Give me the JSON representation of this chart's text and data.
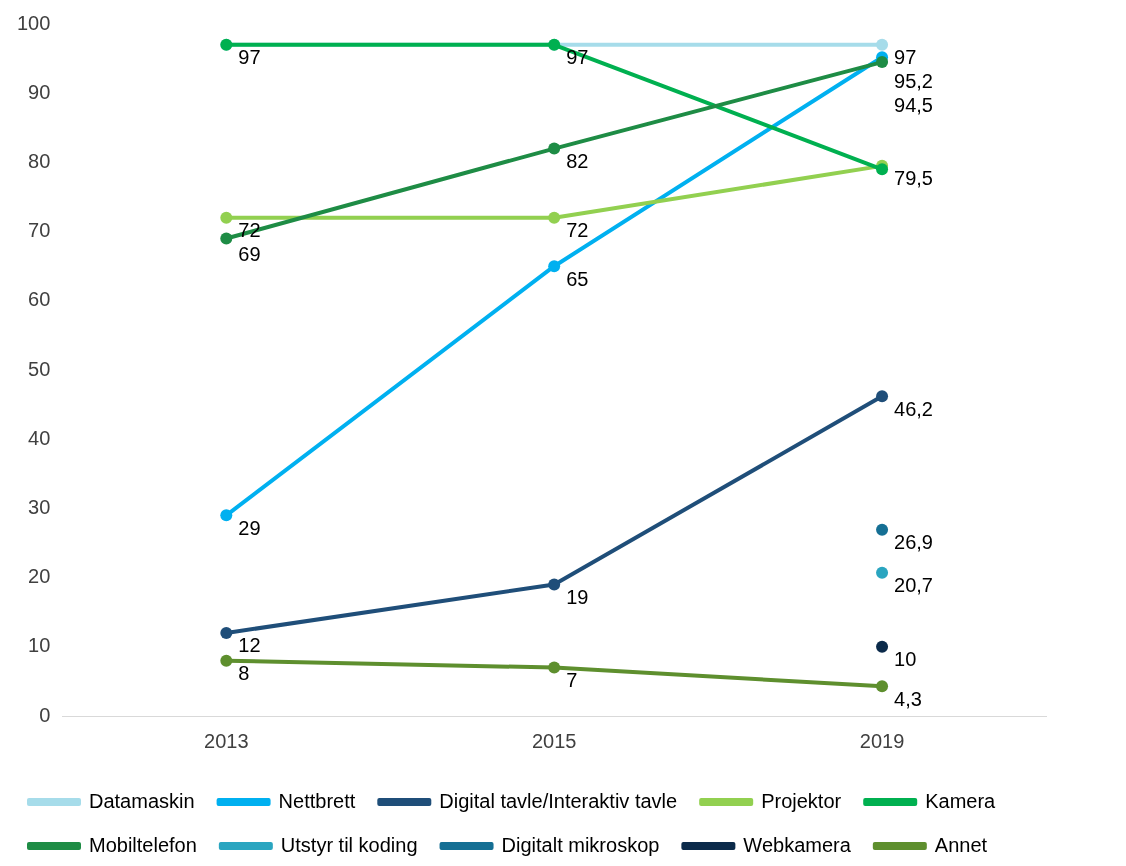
{
  "chart_data": {
    "type": "line",
    "categories": [
      "2013",
      "2015",
      "2019"
    ],
    "ylim": [
      0,
      100
    ],
    "yticks": [
      0,
      10,
      20,
      30,
      40,
      50,
      60,
      70,
      80,
      90,
      100
    ],
    "grid": false,
    "legend": "bottom",
    "marker": "circle",
    "line_style": "solid",
    "series": [
      {
        "name": "Datamaskin",
        "color": "#a6dcea",
        "values": [
          97,
          97,
          97
        ],
        "value_labels": [
          null,
          null,
          "97"
        ]
      },
      {
        "name": "Nettbrett",
        "color": "#00b0f0",
        "values": [
          29,
          65,
          95.2
        ],
        "value_labels": [
          "29",
          "65",
          "95,2"
        ]
      },
      {
        "name": "Digital tavle/Interaktiv tavle",
        "color": "#1f4e79",
        "values": [
          12,
          19,
          46.2
        ],
        "value_labels": [
          "12",
          "19",
          "46,2"
        ]
      },
      {
        "name": "Projektor",
        "color": "#92d050",
        "values": [
          72,
          72,
          79.5
        ],
        "value_labels": [
          "72",
          "72",
          "79,5"
        ]
      },
      {
        "name": "Kamera",
        "color": "#00b050",
        "values": [
          97,
          97,
          79
        ],
        "value_labels": [
          "97",
          "97",
          null
        ]
      },
      {
        "name": "Mobiltelefon",
        "color": "#1e8c45",
        "values": [
          69,
          82,
          94.5
        ],
        "value_labels": [
          "69",
          "82",
          "94,5"
        ]
      },
      {
        "name": "Utstyr til koding",
        "color": "#2aa5c0",
        "values": [
          null,
          null,
          20.7
        ],
        "value_labels": [
          null,
          null,
          "20,7"
        ]
      },
      {
        "name": "Digitalt mikroskop",
        "color": "#156f94",
        "values": [
          null,
          null,
          26.9
        ],
        "value_labels": [
          null,
          null,
          "26,9"
        ]
      },
      {
        "name": "Webkamera",
        "color": "#0b2a4a",
        "values": [
          null,
          null,
          10
        ],
        "value_labels": [
          null,
          null,
          "10"
        ]
      },
      {
        "name": "Annet",
        "color": "#5e8f2e",
        "values": [
          8,
          7,
          4.3
        ],
        "value_labels": [
          "8",
          "7",
          "4,3"
        ]
      }
    ]
  }
}
